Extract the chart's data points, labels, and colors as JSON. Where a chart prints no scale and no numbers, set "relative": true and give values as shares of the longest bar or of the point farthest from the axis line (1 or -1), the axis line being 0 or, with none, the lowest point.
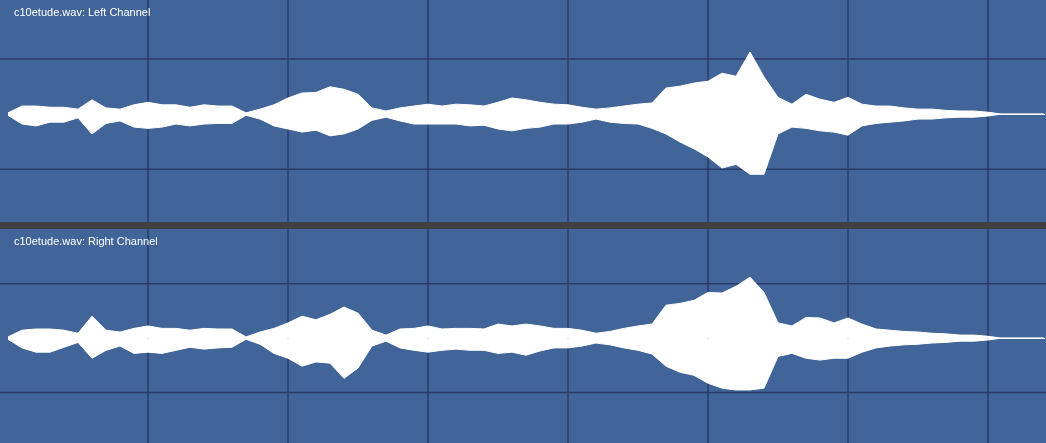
{
  "chart_data": [
    {
      "type": "area",
      "title": "c10etude.wav: Left Channel",
      "relative": true,
      "grid": true,
      "categories": [
        null,
        null,
        null,
        null,
        null,
        null,
        null,
        null,
        null,
        null,
        null,
        null,
        null,
        null,
        null,
        null,
        null,
        null,
        null,
        null,
        null,
        null,
        null,
        null,
        null,
        null,
        null,
        null,
        null,
        null,
        null,
        null,
        null,
        null,
        null,
        null,
        null,
        null,
        null,
        null,
        null,
        null,
        null,
        null,
        null,
        null,
        null,
        null,
        null,
        null,
        null,
        null,
        null,
        null,
        null,
        null,
        null,
        null,
        null,
        null,
        null,
        null,
        null,
        null,
        null,
        null,
        null,
        null,
        null,
        null,
        null,
        null,
        null,
        null,
        null
      ],
      "series": [
        {
          "color": "#ffffff",
          "values": [
            0.02,
            0.13,
            0.13,
            0.11,
            0.11,
            0.08,
            0.23,
            0.1,
            0.08,
            0.15,
            0.19,
            0.15,
            0.15,
            0.11,
            0.15,
            0.13,
            0.13,
            0.02,
            0.08,
            0.15,
            0.26,
            0.34,
            0.35,
            0.44,
            0.4,
            0.32,
            0.1,
            0.05,
            0.1,
            0.13,
            0.16,
            0.13,
            0.16,
            0.15,
            0.13,
            0.19,
            0.26,
            0.23,
            0.19,
            0.16,
            0.15,
            0.11,
            0.08,
            0.1,
            0.13,
            0.16,
            0.18,
            0.42,
            0.45,
            0.5,
            0.53,
            0.66,
            0.61,
            1,
            0.6,
            0.27,
            0.16,
            0.32,
            0.24,
            0.19,
            0.27,
            0.16,
            0.13,
            0.13,
            0.1,
            0.08,
            0.08,
            0.06,
            0.05,
            0.05,
            0.03,
            0,
            0,
            0,
            0
          ]
        },
        {
          "color": "#ffffff",
          "values": [
            -0.02,
            -0.16,
            -0.19,
            -0.13,
            -0.13,
            -0.06,
            -0.32,
            -0.15,
            -0.11,
            -0.21,
            -0.23,
            -0.21,
            -0.16,
            -0.19,
            -0.16,
            -0.15,
            -0.15,
            -0.02,
            -0.08,
            -0.19,
            -0.24,
            -0.29,
            -0.26,
            -0.35,
            -0.32,
            -0.24,
            -0.1,
            -0.05,
            -0.11,
            -0.16,
            -0.16,
            -0.16,
            -0.16,
            -0.19,
            -0.18,
            -0.24,
            -0.27,
            -0.23,
            -0.21,
            -0.16,
            -0.16,
            -0.13,
            -0.08,
            -0.13,
            -0.15,
            -0.16,
            -0.23,
            -0.32,
            -0.45,
            -0.56,
            -0.69,
            -0.87,
            -0.81,
            -0.97,
            -0.97,
            -0.32,
            -0.21,
            -0.23,
            -0.27,
            -0.29,
            -0.34,
            -0.19,
            -0.15,
            -0.13,
            -0.11,
            -0.08,
            -0.08,
            -0.06,
            -0.05,
            -0.05,
            -0.03,
            0,
            0,
            0,
            0
          ]
        }
      ]
    },
    {
      "type": "area",
      "title": "c10etude.wav: Right Channel",
      "relative": true,
      "grid": true,
      "categories": [
        null,
        null,
        null,
        null,
        null,
        null,
        null,
        null,
        null,
        null,
        null,
        null,
        null,
        null,
        null,
        null,
        null,
        null,
        null,
        null,
        null,
        null,
        null,
        null,
        null,
        null,
        null,
        null,
        null,
        null,
        null,
        null,
        null,
        null,
        null,
        null,
        null,
        null,
        null,
        null,
        null,
        null,
        null,
        null,
        null,
        null,
        null,
        null,
        null,
        null,
        null,
        null,
        null,
        null,
        null,
        null,
        null,
        null,
        null,
        null,
        null,
        null,
        null,
        null,
        null,
        null,
        null,
        null,
        null,
        null,
        null,
        null,
        null,
        null,
        null
      ],
      "series": [
        {
          "color": "#ffffff",
          "values": [
            0.02,
            0.13,
            0.15,
            0.15,
            0.13,
            0.08,
            0.36,
            0.13,
            0.1,
            0.16,
            0.2,
            0.16,
            0.16,
            0.13,
            0.16,
            0.15,
            0.15,
            0.02,
            0.1,
            0.16,
            0.25,
            0.36,
            0.3,
            0.39,
            0.51,
            0.41,
            0.13,
            0.05,
            0.15,
            0.16,
            0.2,
            0.15,
            0.16,
            0.16,
            0.15,
            0.23,
            0.2,
            0.23,
            0.2,
            0.16,
            0.16,
            0.13,
            0.08,
            0.11,
            0.16,
            0.2,
            0.23,
            0.54,
            0.57,
            0.62,
            0.75,
            0.74,
            0.85,
            1,
            0.75,
            0.25,
            0.2,
            0.34,
            0.33,
            0.25,
            0.33,
            0.23,
            0.15,
            0.13,
            0.11,
            0.1,
            0.08,
            0.07,
            0.05,
            0.05,
            0.03,
            0,
            0,
            0,
            0
          ]
        },
        {
          "color": "#ffffff",
          "values": [
            -0.02,
            -0.16,
            -0.23,
            -0.23,
            -0.15,
            -0.07,
            -0.33,
            -0.2,
            -0.13,
            -0.25,
            -0.23,
            -0.25,
            -0.2,
            -0.15,
            -0.18,
            -0.16,
            -0.15,
            -0.02,
            -0.1,
            -0.25,
            -0.33,
            -0.46,
            -0.39,
            -0.41,
            -0.66,
            -0.49,
            -0.13,
            -0.05,
            -0.16,
            -0.2,
            -0.23,
            -0.2,
            -0.18,
            -0.2,
            -0.2,
            -0.25,
            -0.23,
            -0.28,
            -0.21,
            -0.16,
            -0.16,
            -0.13,
            -0.08,
            -0.11,
            -0.16,
            -0.2,
            -0.26,
            -0.46,
            -0.56,
            -0.61,
            -0.74,
            -0.82,
            -0.85,
            -0.85,
            -0.82,
            -0.3,
            -0.25,
            -0.33,
            -0.36,
            -0.33,
            -0.33,
            -0.23,
            -0.16,
            -0.13,
            -0.11,
            -0.1,
            -0.08,
            -0.07,
            -0.05,
            -0.05,
            -0.03,
            0,
            0,
            0,
            0
          ]
        }
      ]
    }
  ]
}
